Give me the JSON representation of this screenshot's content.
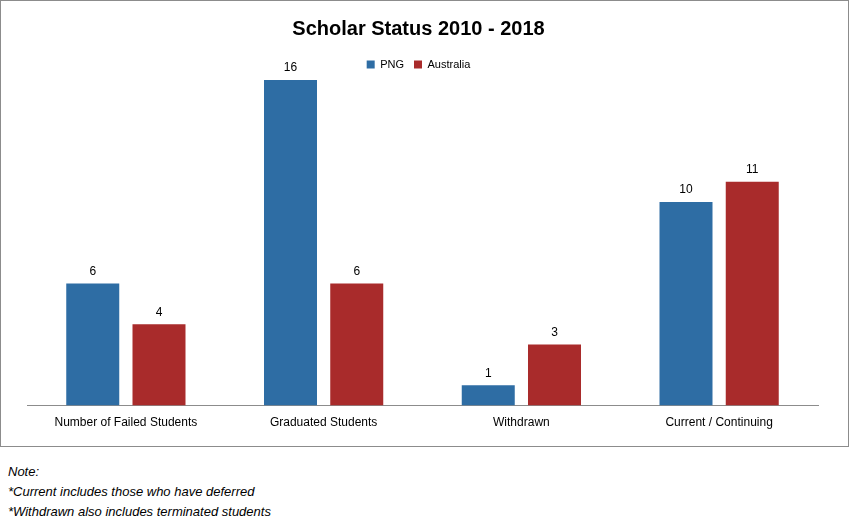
{
  "chart_data": {
    "type": "bar",
    "title": "Scholar Status 2010 - 2018",
    "categories": [
      "Number of Failed Students",
      "Graduated Students",
      "Withdrawn",
      "Current / Continuing"
    ],
    "series": [
      {
        "name": "PNG",
        "color": "#2e6da4",
        "values": [
          6,
          16,
          1,
          10
        ]
      },
      {
        "name": "Australia",
        "color": "#a92b2b",
        "values": [
          4,
          6,
          3,
          11
        ]
      }
    ],
    "ylim": [
      0,
      16
    ],
    "yticks": [
      0,
      4,
      8,
      12,
      16
    ],
    "grid": false,
    "legend": "top",
    "data_labels": true,
    "tick_labels": "x",
    "annotations": [
      "Note:",
      "*Current includes those who have deferred",
      "*Withdrawn also includes terminated students"
    ]
  }
}
